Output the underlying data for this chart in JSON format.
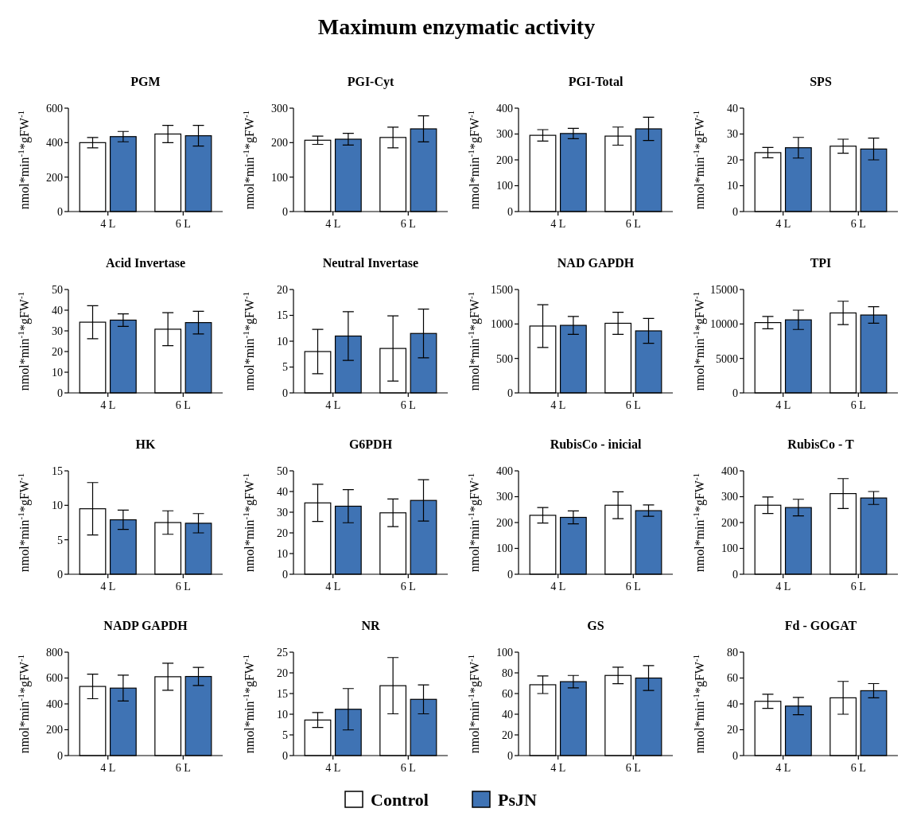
{
  "chart_data": [
    {
      "type": "bar",
      "title": "PGM",
      "annotations": [
        "Maximum enzymatic activity"
      ],
      "legend": "bottom",
      "ylabel": "nmol*min$^{-1}$*gFW$^{-1}$",
      "categories": [
        "4 L",
        "6 L"
      ],
      "ylim": [
        0,
        600
      ],
      "yticks": [
        0,
        200,
        400,
        600
      ],
      "series": [
        {
          "name": "Control",
          "color": "#ffffff",
          "values": [
            400,
            450
          ],
          "errors": [
            30,
            50
          ]
        },
        {
          "name": "PsJN",
          "color": "#3f73b4",
          "values": [
            435,
            440
          ],
          "errors": [
            30,
            60
          ]
        }
      ]
    },
    {
      "type": "bar",
      "title": "PGI-Cyt",
      "ylabel": "nmol*min$^{-1}$*gFW$^{-1}$",
      "categories": [
        "4 L",
        "6 L"
      ],
      "ylim": [
        0,
        300
      ],
      "yticks": [
        0,
        100,
        200,
        300
      ],
      "series": [
        {
          "color": "#ffffff",
          "values": [
            207,
            215
          ],
          "errors": [
            12,
            30
          ]
        },
        {
          "color": "#3f73b4",
          "values": [
            210,
            240
          ],
          "errors": [
            17,
            38
          ]
        }
      ]
    },
    {
      "type": "bar",
      "title": "PGI-Total",
      "ylabel": "nmol*min$^{-1}$*gFW$^{-1}$",
      "categories": [
        "4 L",
        "6 L"
      ],
      "ylim": [
        0,
        400
      ],
      "yticks": [
        0,
        100,
        200,
        300,
        400
      ],
      "series": [
        {
          "color": "#ffffff",
          "values": [
            295,
            292
          ],
          "errors": [
            22,
            35
          ]
        },
        {
          "color": "#3f73b4",
          "values": [
            302,
            320
          ],
          "errors": [
            20,
            45
          ]
        }
      ]
    },
    {
      "type": "bar",
      "title": "SPS",
      "ylabel": "nmol*min$^{-1}$*gFW$^{-1}$",
      "categories": [
        "4 L",
        "6 L"
      ],
      "ylim": [
        0,
        40
      ],
      "yticks": [
        0,
        10,
        20,
        30,
        40
      ],
      "series": [
        {
          "color": "#ffffff",
          "values": [
            22.8,
            25.3
          ],
          "errors": [
            2,
            2.7
          ]
        },
        {
          "color": "#3f73b4",
          "values": [
            24.7,
            24.2
          ],
          "errors": [
            4,
            4.2
          ]
        }
      ]
    },
    {
      "type": "bar",
      "title": "Acid Invertase",
      "ylabel": "nmol*min$^{-1}$*gFW$^{-1}$",
      "categories": [
        "4 L",
        "6 L"
      ],
      "ylim": [
        0,
        50
      ],
      "yticks": [
        0,
        10,
        20,
        30,
        40,
        50
      ],
      "series": [
        {
          "color": "#ffffff",
          "values": [
            34.2,
            30.8
          ],
          "errors": [
            8,
            8
          ]
        },
        {
          "color": "#3f73b4",
          "values": [
            35.2,
            34
          ],
          "errors": [
            3,
            5.5
          ]
        }
      ]
    },
    {
      "type": "bar",
      "title": "Neutral Invertase",
      "ylabel": "nmol*min$^{-1}$*gFW$^{-1}$",
      "categories": [
        "4 L",
        "6 L"
      ],
      "ylim": [
        0,
        20
      ],
      "yticks": [
        0,
        5,
        10,
        15,
        20
      ],
      "series": [
        {
          "color": "#ffffff",
          "values": [
            8,
            8.6
          ],
          "errors": [
            4.3,
            6.3
          ]
        },
        {
          "color": "#3f73b4",
          "values": [
            11,
            11.5
          ],
          "errors": [
            4.7,
            4.7
          ]
        }
      ]
    },
    {
      "type": "bar",
      "title": "NAD GAPDH",
      "ylabel": "nmol*min$^{-1}$*gFW$^{-1}$",
      "categories": [
        "4 L",
        "6 L"
      ],
      "ylim": [
        0,
        1500
      ],
      "yticks": [
        0,
        500,
        1000,
        1500
      ],
      "series": [
        {
          "color": "#ffffff",
          "values": [
            970,
            1010
          ],
          "errors": [
            310,
            160
          ]
        },
        {
          "color": "#3f73b4",
          "values": [
            980,
            900
          ],
          "errors": [
            130,
            180
          ]
        }
      ]
    },
    {
      "type": "bar",
      "title": "TPI",
      "ylabel": "nmol*min$^{-1}$*gFW$^{-1}$",
      "categories": [
        "4 L",
        "6 L"
      ],
      "ylim": [
        0,
        15000
      ],
      "yticks": [
        0,
        5000,
        10000,
        15000
      ],
      "series": [
        {
          "color": "#ffffff",
          "values": [
            10200,
            11600
          ],
          "errors": [
            900,
            1700
          ]
        },
        {
          "color": "#3f73b4",
          "values": [
            10600,
            11300
          ],
          "errors": [
            1400,
            1200
          ]
        }
      ]
    },
    {
      "type": "bar",
      "title": "HK",
      "ylabel": "nmol*min$^{-1}$*gFW$^{-1}$",
      "categories": [
        "4 L",
        "6 L"
      ],
      "ylim": [
        0,
        15
      ],
      "yticks": [
        0,
        5,
        10,
        15
      ],
      "series": [
        {
          "color": "#ffffff",
          "values": [
            9.5,
            7.5
          ],
          "errors": [
            3.8,
            1.7
          ]
        },
        {
          "color": "#3f73b4",
          "values": [
            7.9,
            7.4
          ],
          "errors": [
            1.4,
            1.4
          ]
        }
      ]
    },
    {
      "type": "bar",
      "title": "G6PDH",
      "ylabel": "nmol*min$^{-1}$*gFW$^{-1}$",
      "categories": [
        "4 L",
        "6 L"
      ],
      "ylim": [
        0,
        50
      ],
      "yticks": [
        0,
        10,
        20,
        30,
        40,
        50
      ],
      "series": [
        {
          "color": "#ffffff",
          "values": [
            34.5,
            29.7
          ],
          "errors": [
            9,
            6.7
          ]
        },
        {
          "color": "#3f73b4",
          "values": [
            32.9,
            35.7
          ],
          "errors": [
            8,
            10
          ]
        }
      ]
    },
    {
      "type": "bar",
      "title": "RubisCo - inicial",
      "ylabel": "nmol*min$^{-1}$*gFW$^{-1}$",
      "categories": [
        "4 L",
        "6 L"
      ],
      "ylim": [
        0,
        400
      ],
      "yticks": [
        0,
        100,
        200,
        300,
        400
      ],
      "series": [
        {
          "color": "#ffffff",
          "values": [
            228,
            267
          ],
          "errors": [
            30,
            52
          ]
        },
        {
          "color": "#3f73b4",
          "values": [
            220,
            246
          ],
          "errors": [
            25,
            22
          ]
        }
      ]
    },
    {
      "type": "bar",
      "title": "RubisCo - T",
      "ylabel": "nmol*min$^{-1}$*gFW$^{-1}$",
      "categories": [
        "4 L",
        "6 L"
      ],
      "ylim": [
        0,
        400
      ],
      "yticks": [
        0,
        100,
        200,
        300,
        400
      ],
      "series": [
        {
          "color": "#ffffff",
          "values": [
            267,
            312
          ],
          "errors": [
            32,
            58
          ]
        },
        {
          "color": "#3f73b4",
          "values": [
            258,
            295
          ],
          "errors": [
            32,
            25
          ]
        }
      ]
    },
    {
      "type": "bar",
      "title": "NADP GAPDH",
      "ylabel": "nmol*min$^{-1}$*gFW$^{-1}$",
      "categories": [
        "4 L",
        "6 L"
      ],
      "ylim": [
        0,
        800
      ],
      "yticks": [
        0,
        200,
        400,
        600,
        800
      ],
      "series": [
        {
          "color": "#ffffff",
          "values": [
            535,
            610
          ],
          "errors": [
            95,
            105
          ]
        },
        {
          "color": "#3f73b4",
          "values": [
            522,
            612
          ],
          "errors": [
            100,
            70
          ]
        }
      ]
    },
    {
      "type": "bar",
      "title": "NR",
      "ylabel": "nmol*min$^{-1}$*gFW$^{-1}$",
      "categories": [
        "4 L",
        "6 L"
      ],
      "ylim": [
        0,
        25
      ],
      "yticks": [
        0,
        5,
        10,
        15,
        20,
        25
      ],
      "series": [
        {
          "color": "#ffffff",
          "values": [
            8.6,
            16.9
          ],
          "errors": [
            1.8,
            6.8
          ]
        },
        {
          "color": "#3f73b4",
          "values": [
            11.2,
            13.6
          ],
          "errors": [
            5,
            3.5
          ]
        }
      ]
    },
    {
      "type": "bar",
      "title": "GS",
      "ylabel": "nmol*min$^{-1}$*gFW$^{-1}$",
      "categories": [
        "4 L",
        "6 L"
      ],
      "ylim": [
        0,
        100
      ],
      "yticks": [
        0,
        20,
        40,
        60,
        80,
        100
      ],
      "series": [
        {
          "color": "#ffffff",
          "values": [
            68.5,
            77.5
          ],
          "errors": [
            8.5,
            8
          ]
        },
        {
          "color": "#3f73b4",
          "values": [
            71.5,
            75
          ],
          "errors": [
            6,
            12
          ]
        }
      ]
    },
    {
      "type": "bar",
      "title": "Fd - GOGAT",
      "ylabel": "nmol*min$^{-1}$*gFW$^{-1}$",
      "categories": [
        "4 L",
        "6 L"
      ],
      "ylim": [
        0,
        80
      ],
      "yticks": [
        0,
        20,
        40,
        60,
        80
      ],
      "series": [
        {
          "color": "#ffffff",
          "values": [
            42,
            44.7
          ],
          "errors": [
            5.5,
            12.7
          ]
        },
        {
          "color": "#3f73b4",
          "values": [
            38.3,
            50.2
          ],
          "errors": [
            6.7,
            5.5
          ]
        }
      ]
    }
  ]
}
